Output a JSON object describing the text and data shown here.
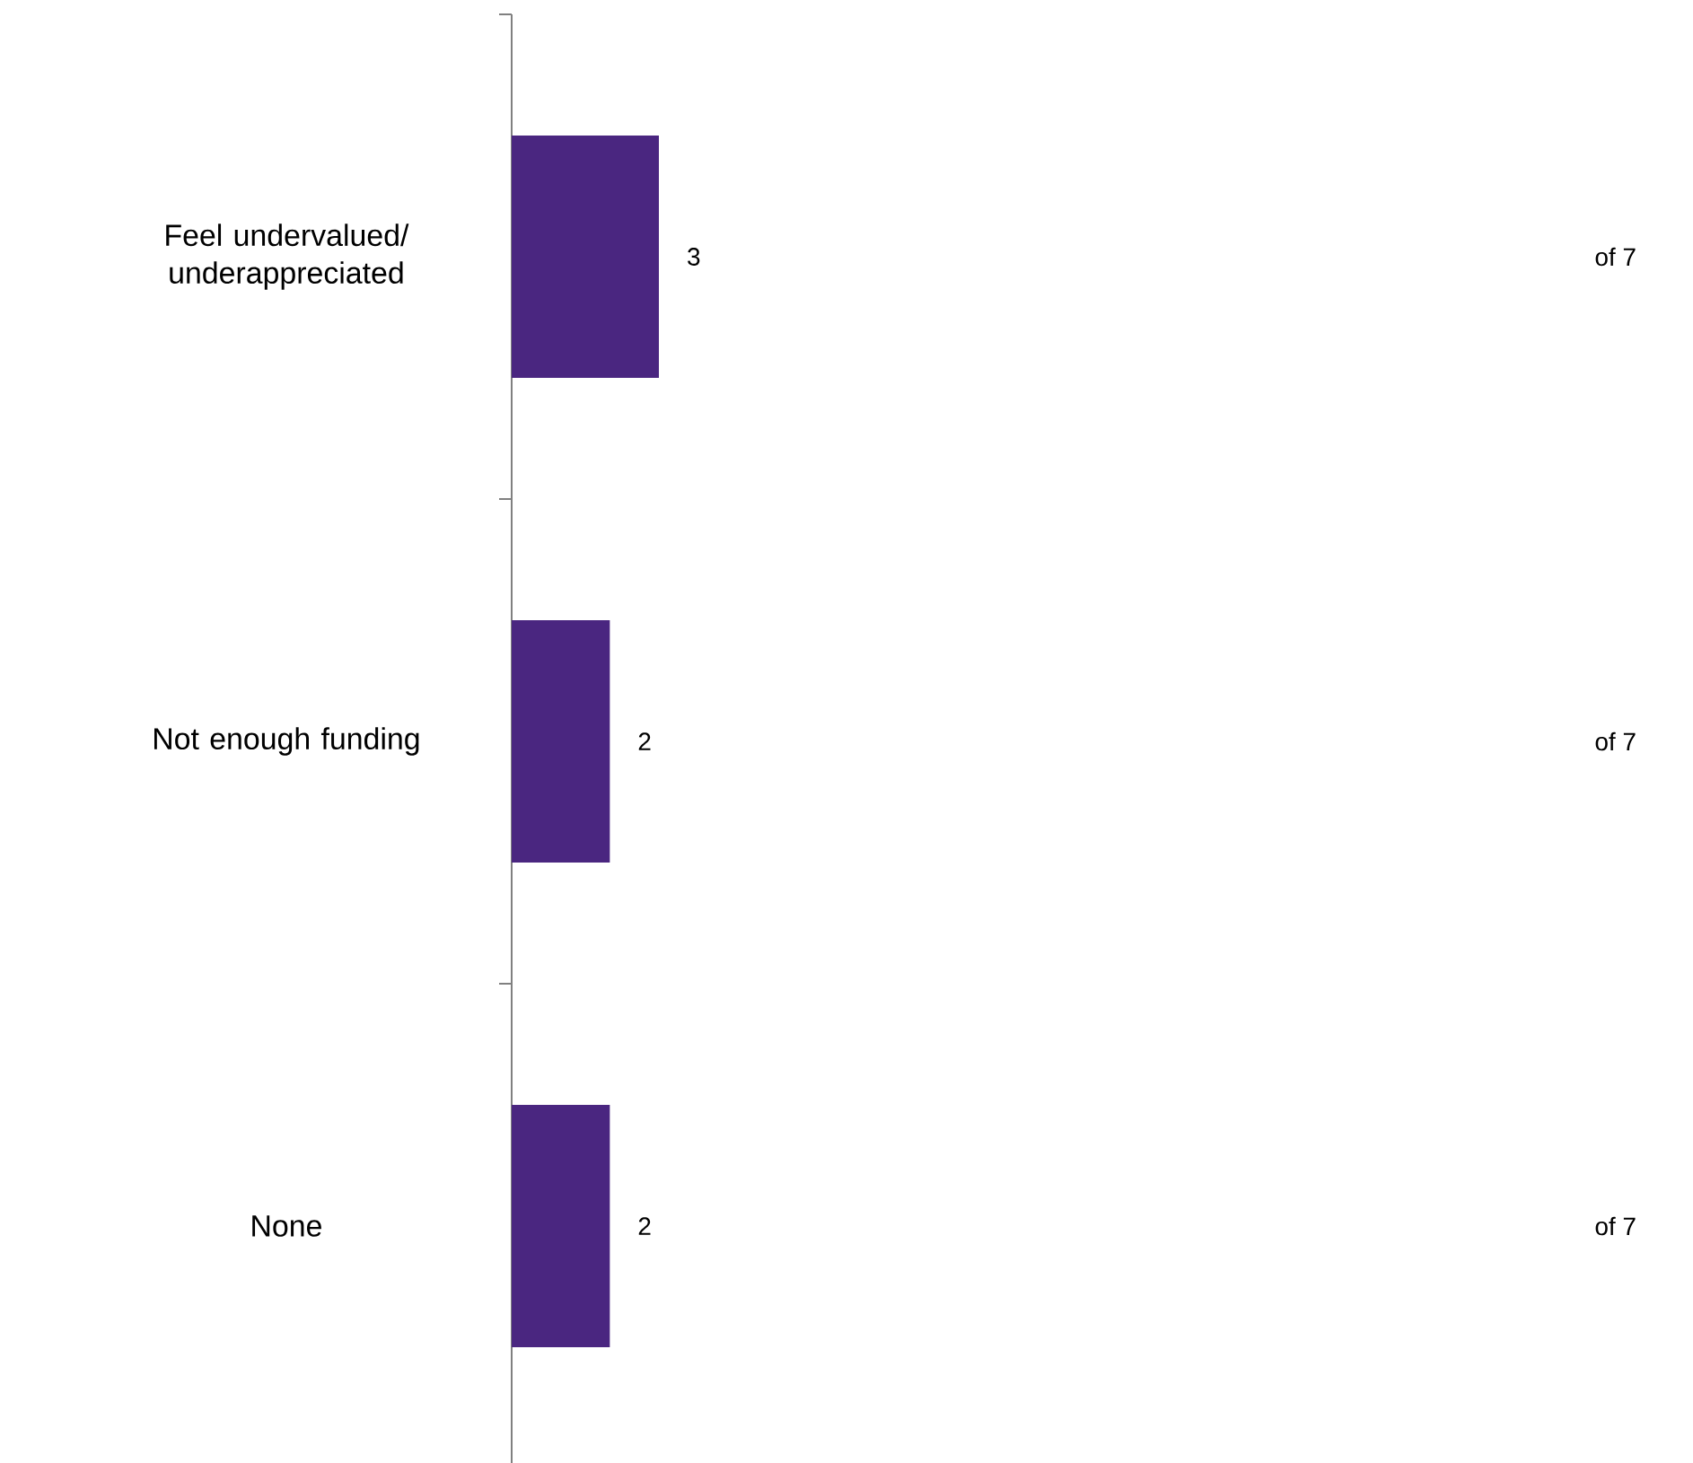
{
  "chart_data": {
    "type": "bar",
    "orientation": "horizontal",
    "categories": [
      "Feel undervalued/ underappreciated",
      "Not enough funding",
      "None"
    ],
    "values": [
      3,
      2,
      2
    ],
    "color": "#4a2680",
    "tick_labels": "y",
    "data_labels": true,
    "annotations": [
      "of 7",
      "of 7",
      "of 7"
    ]
  }
}
